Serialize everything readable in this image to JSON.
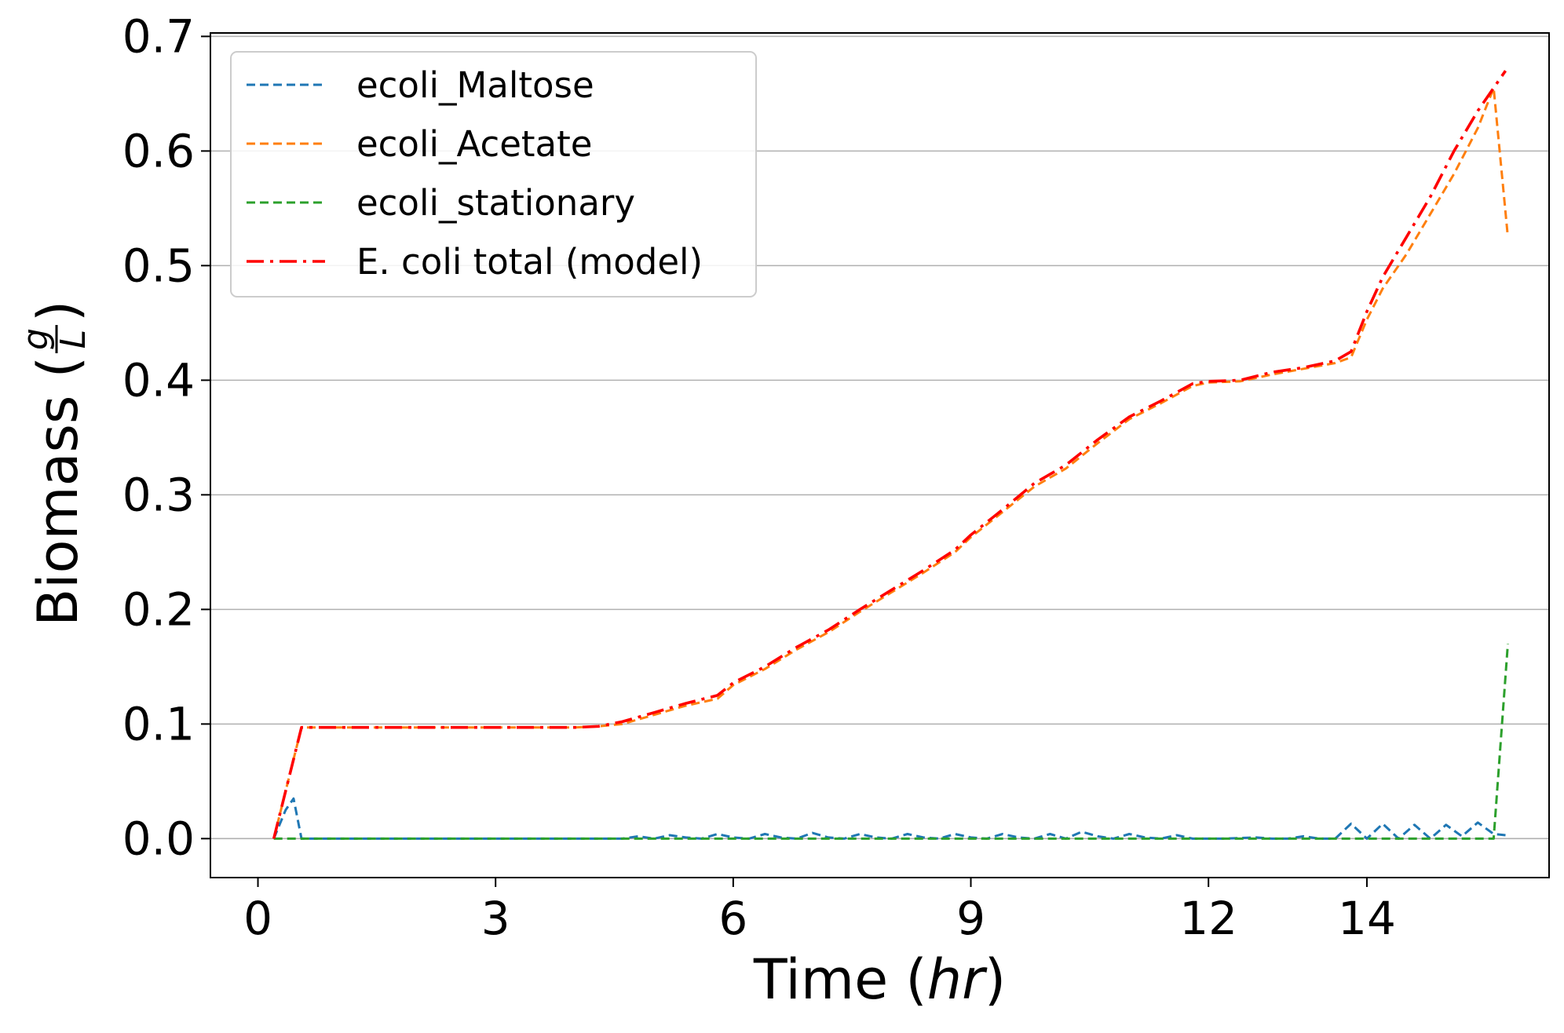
{
  "chart_data": {
    "type": "line",
    "xlabel": "Time (hr)",
    "xlabel_parts": {
      "prefix": "Time (",
      "italic": "hr",
      "suffix": ")"
    },
    "ylabel": "Biomass (g/L)",
    "ylabel_parts": {
      "prefix": "Biomass (",
      "numerator": "g",
      "denominator": "L",
      "suffix": ")"
    },
    "xlim": [
      -0.6,
      16.3
    ],
    "ylim": [
      -0.034,
      0.703
    ],
    "x_ticks": [
      {
        "value": 0,
        "label": "0"
      },
      {
        "value": 3,
        "label": "3"
      },
      {
        "value": 6,
        "label": "6"
      },
      {
        "value": 9,
        "label": "9"
      },
      {
        "value": 12,
        "label": "12"
      },
      {
        "value": 14,
        "label": "14"
      }
    ],
    "y_ticks": [
      {
        "value": 0.0,
        "label": "0.0"
      },
      {
        "value": 0.1,
        "label": "0.1"
      },
      {
        "value": 0.2,
        "label": "0.2"
      },
      {
        "value": 0.3,
        "label": "0.3"
      },
      {
        "value": 0.4,
        "label": "0.4"
      },
      {
        "value": 0.5,
        "label": "0.5"
      },
      {
        "value": 0.6,
        "label": "0.6"
      },
      {
        "value": 0.7,
        "label": "0.7"
      }
    ],
    "grid": "horizontal",
    "legend_position": "upper-left",
    "series": [
      {
        "name": "ecoli_Maltose",
        "color": "#1f77b4",
        "style": "dashed",
        "points": [
          [
            0.2,
            0.0
          ],
          [
            0.35,
            0.025
          ],
          [
            0.45,
            0.035
          ],
          [
            0.55,
            0.0
          ],
          [
            1.0,
            0.0
          ],
          [
            2.0,
            0.0
          ],
          [
            3.0,
            0.0
          ],
          [
            4.0,
            0.0
          ],
          [
            4.6,
            0.0
          ],
          [
            4.8,
            0.002
          ],
          [
            5.0,
            0.0
          ],
          [
            5.2,
            0.003
          ],
          [
            5.4,
            0.001
          ],
          [
            5.6,
            0.0
          ],
          [
            5.8,
            0.004
          ],
          [
            6.0,
            0.001
          ],
          [
            6.2,
            0.0
          ],
          [
            6.4,
            0.004
          ],
          [
            6.6,
            0.001
          ],
          [
            6.8,
            0.0
          ],
          [
            7.0,
            0.005
          ],
          [
            7.2,
            0.001
          ],
          [
            7.4,
            0.0
          ],
          [
            7.6,
            0.004
          ],
          [
            7.8,
            0.001
          ],
          [
            8.0,
            0.0
          ],
          [
            8.2,
            0.004
          ],
          [
            8.4,
            0.001
          ],
          [
            8.6,
            0.0
          ],
          [
            8.8,
            0.004
          ],
          [
            9.0,
            0.001
          ],
          [
            9.2,
            0.0
          ],
          [
            9.4,
            0.004
          ],
          [
            9.6,
            0.001
          ],
          [
            9.8,
            0.0
          ],
          [
            10.0,
            0.004
          ],
          [
            10.2,
            0.0
          ],
          [
            10.4,
            0.006
          ],
          [
            10.6,
            0.002
          ],
          [
            10.8,
            0.0
          ],
          [
            11.0,
            0.004
          ],
          [
            11.2,
            0.001
          ],
          [
            11.4,
            0.0
          ],
          [
            11.6,
            0.003
          ],
          [
            11.8,
            0.0
          ],
          [
            12.2,
            0.0
          ],
          [
            12.6,
            0.001
          ],
          [
            12.8,
            0.0
          ],
          [
            13.0,
            0.0
          ],
          [
            13.2,
            0.002
          ],
          [
            13.4,
            0.0
          ],
          [
            13.6,
            0.0
          ],
          [
            13.8,
            0.013
          ],
          [
            14.0,
            0.0
          ],
          [
            14.2,
            0.013
          ],
          [
            14.4,
            0.0
          ],
          [
            14.6,
            0.012
          ],
          [
            14.8,
            0.0
          ],
          [
            15.0,
            0.012
          ],
          [
            15.2,
            0.002
          ],
          [
            15.4,
            0.014
          ],
          [
            15.6,
            0.004
          ],
          [
            15.75,
            0.003
          ]
        ]
      },
      {
        "name": "ecoli_Acetate",
        "color": "#ff7f0e",
        "style": "dashed",
        "points": [
          [
            0.2,
            0.0
          ],
          [
            0.55,
            0.097
          ],
          [
            1.0,
            0.097
          ],
          [
            2.0,
            0.097
          ],
          [
            3.0,
            0.097
          ],
          [
            4.0,
            0.097
          ],
          [
            4.3,
            0.098
          ],
          [
            4.6,
            0.1
          ],
          [
            5.0,
            0.108
          ],
          [
            5.4,
            0.116
          ],
          [
            5.8,
            0.122
          ],
          [
            6.0,
            0.134
          ],
          [
            6.4,
            0.148
          ],
          [
            6.8,
            0.165
          ],
          [
            7.2,
            0.18
          ],
          [
            7.6,
            0.198
          ],
          [
            8.0,
            0.215
          ],
          [
            8.4,
            0.232
          ],
          [
            8.8,
            0.25
          ],
          [
            9.0,
            0.263
          ],
          [
            9.4,
            0.285
          ],
          [
            9.8,
            0.307
          ],
          [
            10.2,
            0.323
          ],
          [
            10.6,
            0.345
          ],
          [
            11.0,
            0.366
          ],
          [
            11.4,
            0.38
          ],
          [
            11.8,
            0.395
          ],
          [
            12.0,
            0.398
          ],
          [
            12.4,
            0.399
          ],
          [
            12.8,
            0.405
          ],
          [
            13.2,
            0.41
          ],
          [
            13.6,
            0.415
          ],
          [
            13.8,
            0.42
          ],
          [
            14.0,
            0.453
          ],
          [
            14.2,
            0.48
          ],
          [
            14.5,
            0.51
          ],
          [
            14.8,
            0.545
          ],
          [
            15.1,
            0.58
          ],
          [
            15.4,
            0.62
          ],
          [
            15.6,
            0.655
          ],
          [
            15.78,
            0.525
          ]
        ]
      },
      {
        "name": "ecoli_stationary",
        "color": "#2ca02c",
        "style": "dashed",
        "points": [
          [
            0.2,
            0.0
          ],
          [
            2.0,
            0.0
          ],
          [
            4.0,
            0.0
          ],
          [
            6.0,
            0.0
          ],
          [
            8.0,
            0.0
          ],
          [
            10.0,
            0.0
          ],
          [
            12.0,
            0.0
          ],
          [
            14.0,
            0.0
          ],
          [
            15.4,
            0.0
          ],
          [
            15.6,
            0.0
          ],
          [
            15.78,
            0.17
          ]
        ]
      },
      {
        "name": "E. coli total (model)",
        "color": "#ff0000",
        "style": "dashdot",
        "points": [
          [
            0.2,
            0.0
          ],
          [
            0.55,
            0.097
          ],
          [
            1.0,
            0.097
          ],
          [
            2.0,
            0.097
          ],
          [
            3.0,
            0.097
          ],
          [
            4.0,
            0.097
          ],
          [
            4.3,
            0.098
          ],
          [
            4.6,
            0.102
          ],
          [
            5.0,
            0.11
          ],
          [
            5.4,
            0.118
          ],
          [
            5.8,
            0.125
          ],
          [
            6.0,
            0.136
          ],
          [
            6.4,
            0.15
          ],
          [
            6.8,
            0.167
          ],
          [
            7.2,
            0.182
          ],
          [
            7.6,
            0.2
          ],
          [
            8.0,
            0.217
          ],
          [
            8.4,
            0.234
          ],
          [
            8.8,
            0.252
          ],
          [
            9.0,
            0.265
          ],
          [
            9.4,
            0.287
          ],
          [
            9.8,
            0.31
          ],
          [
            10.2,
            0.326
          ],
          [
            10.6,
            0.348
          ],
          [
            11.0,
            0.368
          ],
          [
            11.4,
            0.382
          ],
          [
            11.8,
            0.397
          ],
          [
            12.0,
            0.399
          ],
          [
            12.4,
            0.4
          ],
          [
            12.8,
            0.407
          ],
          [
            13.2,
            0.411
          ],
          [
            13.6,
            0.417
          ],
          [
            13.8,
            0.425
          ],
          [
            14.0,
            0.46
          ],
          [
            14.2,
            0.49
          ],
          [
            14.5,
            0.525
          ],
          [
            14.8,
            0.56
          ],
          [
            15.1,
            0.6
          ],
          [
            15.4,
            0.635
          ],
          [
            15.75,
            0.67
          ]
        ]
      }
    ]
  }
}
